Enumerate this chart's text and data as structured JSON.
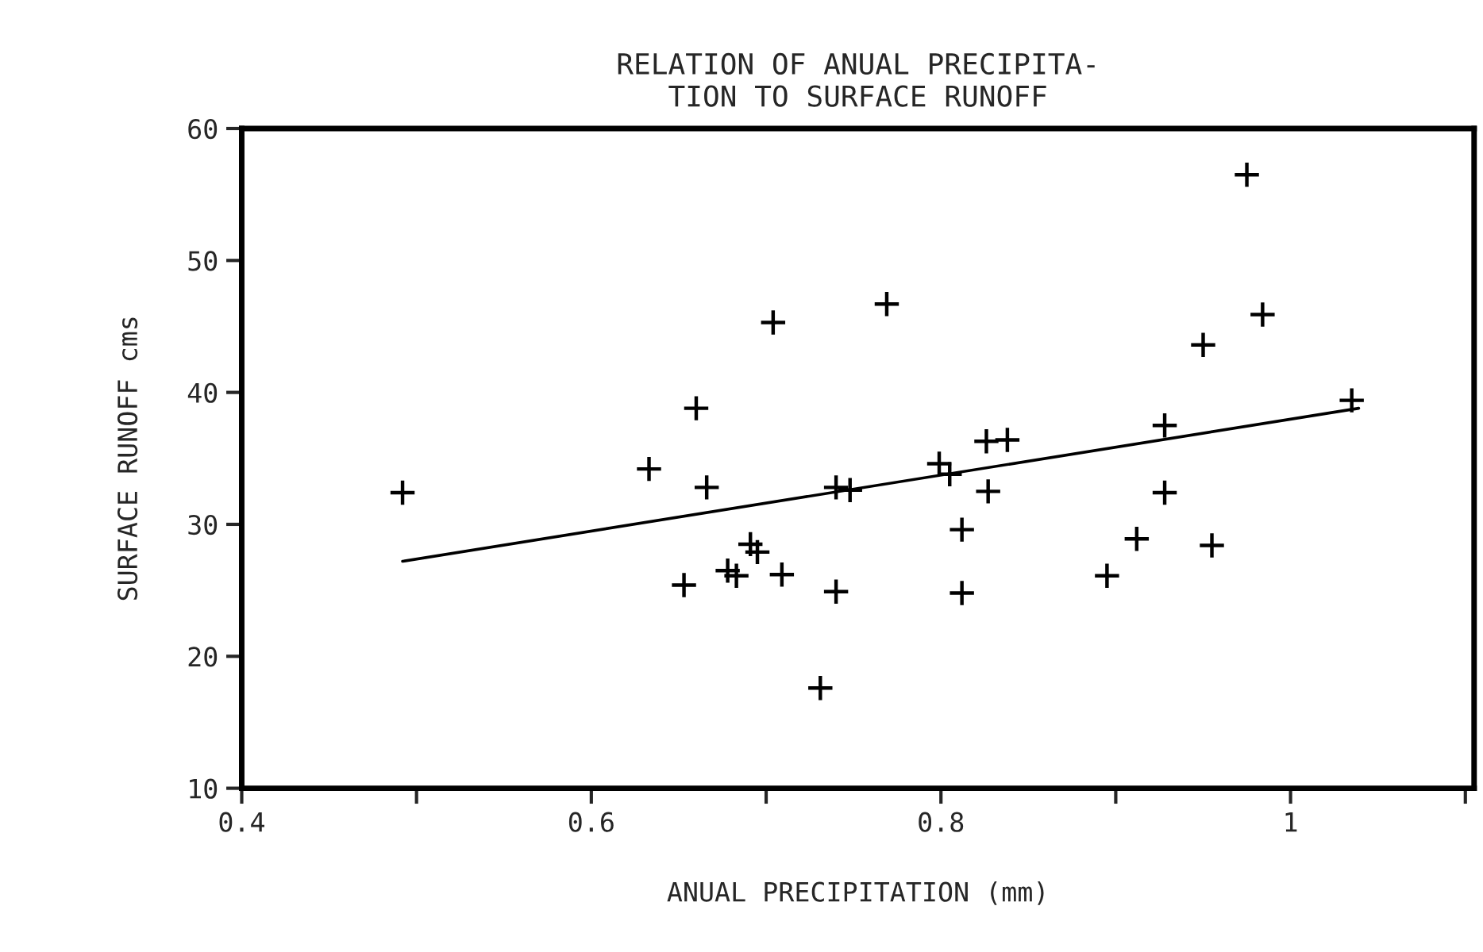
{
  "chart_data": {
    "type": "scatter",
    "title": "RELATION OF ANUAL PRECIPITA-\nTION TO SURFACE RUNOFF",
    "xlabel": "ANUAL PRECIPITATION (mm)",
    "ylabel": "SURFACE RUNOFF cms",
    "series": [
      {
        "color": "#000000",
        "marker": "cross",
        "x": [
          0.492,
          0.704,
          0.66,
          0.633,
          0.666,
          0.653,
          0.678,
          0.683,
          0.691,
          0.695,
          0.709,
          0.74,
          0.731,
          0.74,
          0.748,
          0.769,
          0.799,
          0.805,
          0.812,
          0.812,
          0.826,
          0.838,
          0.827,
          0.895,
          0.912,
          0.928,
          0.928,
          0.955,
          0.95,
          0.984,
          0.975,
          1.035
        ],
        "values": [
          32.4,
          45.3,
          38.8,
          34.2,
          32.8,
          25.4,
          26.5,
          26.1,
          28.5,
          27.9,
          26.2,
          24.9,
          17.6,
          32.8,
          32.6,
          46.7,
          34.6,
          33.8,
          29.6,
          24.8,
          36.3,
          36.4,
          32.5,
          26.1,
          28.9,
          32.4,
          37.5,
          28.4,
          43.6,
          45.9,
          56.5,
          39.4
        ]
      },
      {
        "type": "line",
        "color": "#000000",
        "marker": "none",
        "line_style": "solid",
        "x": [
          0.492,
          1.039
        ],
        "values": [
          27.2,
          38.8
        ]
      }
    ],
    "xlim": [
      0.4,
      1.105
    ],
    "xticks": [
      0.4,
      {
        "value": 0.5,
        "label": null
      },
      0.6,
      {
        "value": 0.7,
        "label": null
      },
      0.8,
      {
        "value": 0.9,
        "label": null
      },
      1,
      {
        "value": 1.1,
        "label": null
      }
    ],
    "ylim": [
      10,
      60
    ],
    "yticks": [
      10,
      20,
      30,
      40,
      50,
      60
    ],
    "grid": false,
    "legend": false
  }
}
